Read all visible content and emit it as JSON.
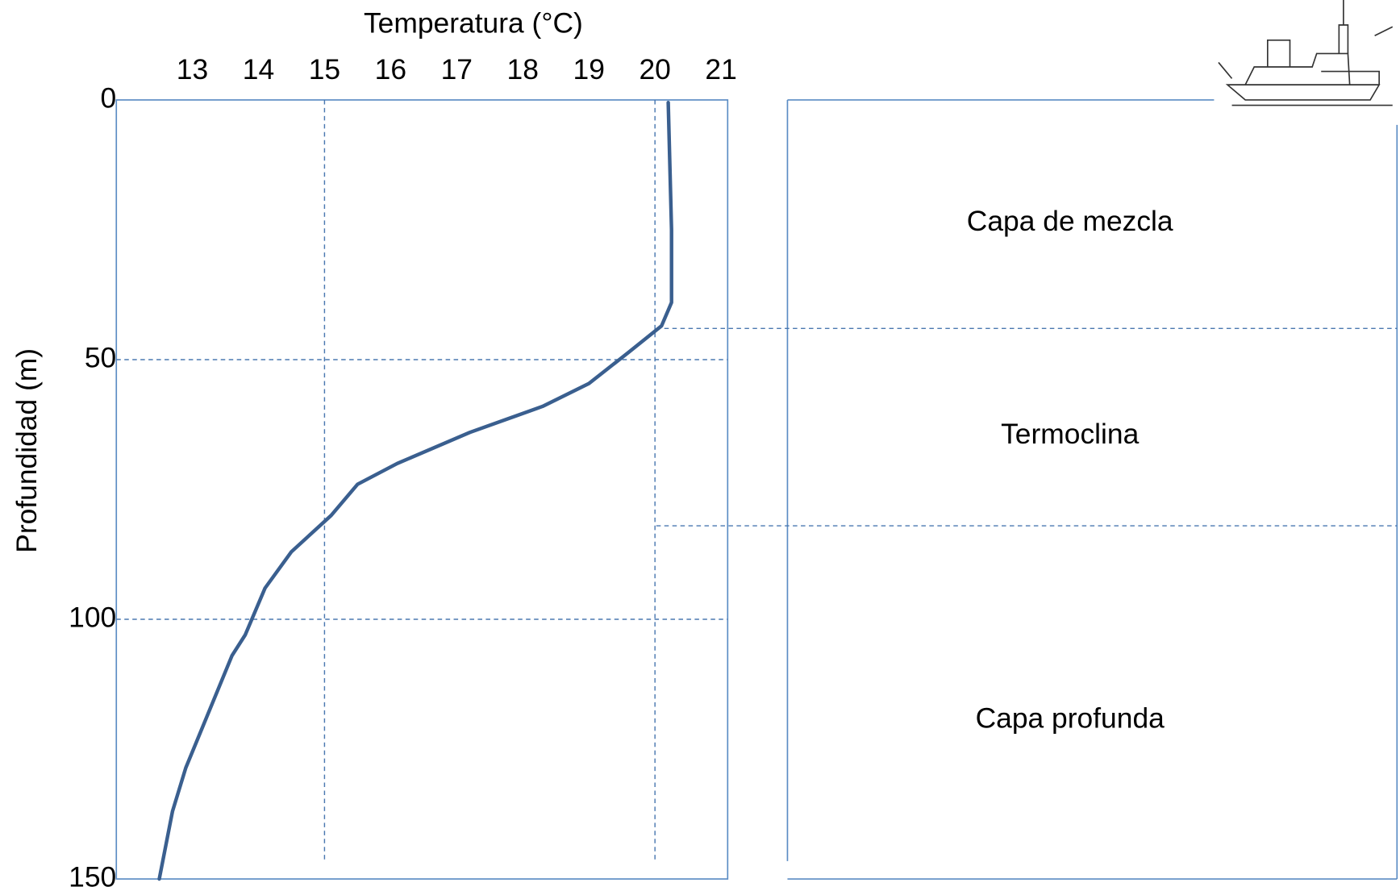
{
  "chart_data": {
    "type": "line",
    "x_label": "Temperatura (°C)",
    "y_label": "Profundidad (m)",
    "x": [
      20.2,
      20.25,
      20.25,
      20.1,
      19.6,
      19.0,
      18.3,
      17.2,
      16.1,
      15.5,
      15.1,
      14.5,
      14.1,
      13.8,
      13.6,
      12.9,
      12.7,
      12.5
    ],
    "series": [
      {
        "color": "#3a5f8f",
        "values": [
          0.5,
          25,
          39,
          43.5,
          48.6,
          54.6,
          59,
          64,
          70,
          74,
          80,
          87,
          94,
          103,
          107,
          128.6,
          137,
          150
        ]
      }
    ],
    "xlim": [
      11.85,
      21.1
    ],
    "xticks": [
      13,
      14,
      15,
      16,
      17,
      18,
      19,
      20,
      21
    ],
    "ylim": [
      0,
      150
    ],
    "yticks": [
      0,
      50,
      100,
      150
    ],
    "x_grid": [
      15,
      20
    ],
    "y_grid": [
      50,
      100
    ],
    "layer_boundaries": [
      44,
      82
    ],
    "layers": [
      "Capa de mezcla",
      "Termoclina",
      "Capa profunda"
    ],
    "y_inverted": true
  }
}
